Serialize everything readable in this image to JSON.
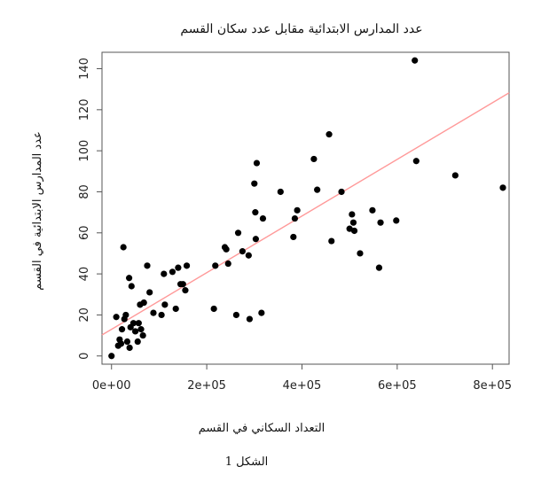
{
  "chart_data": {
    "type": "scatter",
    "title": "عدد المدارس الابتدائية مقابل عدد سكان القسم",
    "xlabel": "التعداد السكاني في القسم",
    "ylabel": "عدد المدارس الابتدائية في القسم",
    "caption": "الشكل 1",
    "xlim": [
      -20000,
      835000
    ],
    "ylim": [
      -4,
      148
    ],
    "x_ticks": [
      0,
      200000,
      400000,
      600000,
      800000
    ],
    "x_tick_labels": [
      "0e+00",
      "2e+05",
      "4e+05",
      "6e+05",
      "8e+05"
    ],
    "y_ticks": [
      0,
      20,
      40,
      60,
      80,
      100,
      120,
      140
    ],
    "y_tick_labels": [
      "0",
      "20",
      "40",
      "60",
      "80",
      "100",
      "120",
      "140"
    ],
    "point_color": "#000000",
    "trend_line_color": "#ff9999",
    "trend_line": {
      "intercept": 13,
      "slope": 0.000138
    },
    "points": [
      [
        0,
        0
      ],
      [
        10000,
        19
      ],
      [
        14000,
        5
      ],
      [
        17000,
        8
      ],
      [
        20000,
        6
      ],
      [
        22000,
        13
      ],
      [
        25000,
        53
      ],
      [
        27000,
        18
      ],
      [
        30000,
        20
      ],
      [
        33000,
        7
      ],
      [
        37000,
        38
      ],
      [
        38000,
        4
      ],
      [
        40000,
        14
      ],
      [
        42000,
        34
      ],
      [
        46000,
        16
      ],
      [
        50000,
        12
      ],
      [
        55000,
        7
      ],
      [
        57000,
        16
      ],
      [
        60000,
        25
      ],
      [
        62000,
        13
      ],
      [
        66000,
        10
      ],
      [
        68000,
        26
      ],
      [
        75000,
        44
      ],
      [
        80000,
        31
      ],
      [
        88000,
        21
      ],
      [
        105000,
        20
      ],
      [
        110000,
        40
      ],
      [
        112000,
        25
      ],
      [
        128000,
        41
      ],
      [
        135000,
        23
      ],
      [
        140000,
        43
      ],
      [
        145000,
        35
      ],
      [
        150000,
        35
      ],
      [
        155000,
        32
      ],
      [
        158000,
        44
      ],
      [
        215000,
        23
      ],
      [
        218000,
        44
      ],
      [
        238000,
        53
      ],
      [
        241000,
        52
      ],
      [
        245000,
        45
      ],
      [
        262000,
        20
      ],
      [
        266000,
        60
      ],
      [
        275000,
        51
      ],
      [
        288000,
        49
      ],
      [
        290000,
        18
      ],
      [
        300000,
        84
      ],
      [
        302000,
        70
      ],
      [
        303000,
        57
      ],
      [
        305000,
        94
      ],
      [
        315000,
        21
      ],
      [
        318000,
        67
      ],
      [
        355000,
        80
      ],
      [
        382000,
        58
      ],
      [
        385000,
        67
      ],
      [
        390000,
        71
      ],
      [
        425000,
        96
      ],
      [
        432000,
        81
      ],
      [
        457000,
        108
      ],
      [
        462000,
        56
      ],
      [
        483000,
        80
      ],
      [
        500000,
        62
      ],
      [
        505000,
        69
      ],
      [
        508000,
        65
      ],
      [
        510000,
        61
      ],
      [
        522000,
        50
      ],
      [
        548000,
        71
      ],
      [
        562000,
        43
      ],
      [
        565000,
        65
      ],
      [
        598000,
        66
      ],
      [
        637000,
        144
      ],
      [
        640000,
        95
      ],
      [
        722000,
        88
      ],
      [
        822000,
        82
      ]
    ]
  }
}
